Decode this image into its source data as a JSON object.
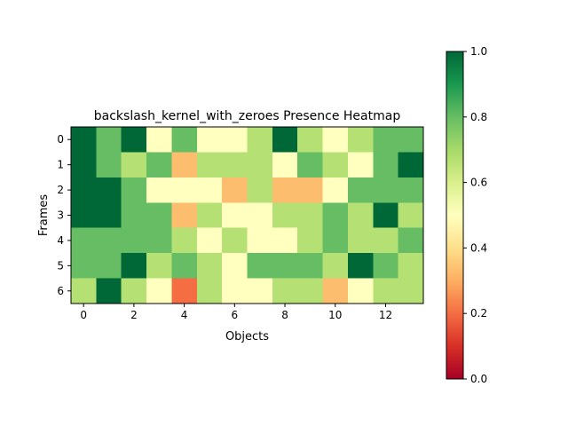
{
  "chart_data": {
    "type": "heatmap",
    "title": "backslash_kernel_with_zeroes Presence Heatmap",
    "xlabel": "Objects",
    "ylabel": "Frames",
    "x_ticks": [
      0,
      2,
      4,
      6,
      8,
      10,
      12
    ],
    "y_ticks": [
      0,
      1,
      2,
      3,
      4,
      5,
      6
    ],
    "n_cols": 14,
    "n_rows": 7,
    "colormap": "RdYlGn",
    "vmin": 0.0,
    "vmax": 1.0,
    "colorbar_ticks": [
      "0.0",
      "0.2",
      "0.4",
      "0.6",
      "0.8",
      "1.0"
    ],
    "values": [
      [
        1.0,
        0.8,
        1.0,
        0.5,
        0.8,
        0.5,
        0.5,
        0.67,
        1.0,
        0.67,
        0.5,
        0.67,
        0.8,
        0.8
      ],
      [
        1.0,
        0.8,
        0.67,
        0.8,
        0.33,
        0.67,
        0.67,
        0.67,
        0.5,
        0.8,
        0.67,
        0.5,
        0.8,
        1.0
      ],
      [
        1.0,
        1.0,
        0.8,
        0.5,
        0.5,
        0.5,
        0.33,
        0.67,
        0.33,
        0.33,
        0.5,
        0.8,
        0.8,
        0.8
      ],
      [
        1.0,
        1.0,
        0.8,
        0.8,
        0.33,
        0.67,
        0.5,
        0.5,
        0.67,
        0.67,
        0.8,
        0.67,
        1.0,
        0.67
      ],
      [
        0.8,
        0.8,
        0.8,
        0.8,
        0.67,
        0.5,
        0.67,
        0.5,
        0.5,
        0.67,
        0.8,
        0.67,
        0.67,
        0.8
      ],
      [
        0.8,
        0.8,
        1.0,
        0.67,
        0.8,
        0.67,
        0.5,
        0.8,
        0.8,
        0.8,
        0.67,
        1.0,
        0.8,
        0.67
      ],
      [
        0.67,
        1.0,
        0.67,
        0.5,
        0.2,
        0.67,
        0.5,
        0.5,
        0.67,
        0.67,
        0.33,
        0.5,
        0.67,
        0.67
      ]
    ]
  }
}
